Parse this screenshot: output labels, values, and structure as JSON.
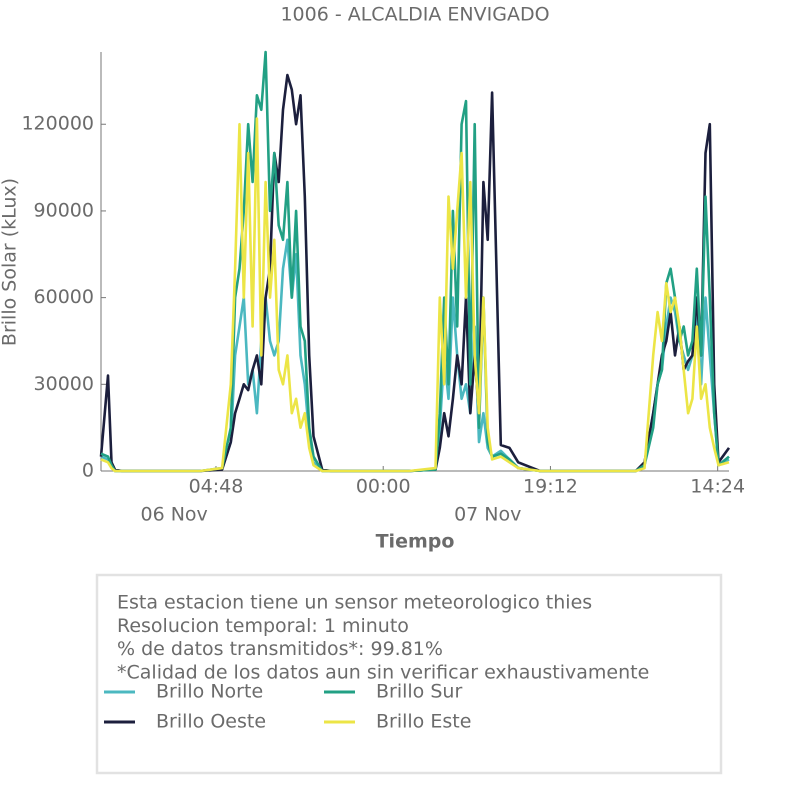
{
  "chart_data": {
    "type": "line",
    "title": "1006 - ALCALDIA ENVIGADO",
    "xlabel": "Tiempo",
    "ylabel": "Brillo Solar (kLux)",
    "x": [
      -8.4,
      -7.6,
      -7.2,
      -6.8,
      -6,
      -3,
      0,
      3,
      5.5,
      6.5,
      7,
      7.5,
      8,
      8.5,
      9,
      9.5,
      10,
      10.5,
      11,
      11.5,
      12,
      12.5,
      13,
      13.5,
      14,
      14.5,
      15,
      15.5,
      16,
      17,
      18,
      21,
      27,
      30,
      30.5,
      31,
      31.5,
      32,
      32.5,
      33,
      33.5,
      34,
      34.5,
      35,
      35.5,
      36,
      36.5,
      37.5,
      38.5,
      39.5,
      42,
      48,
      53,
      54,
      55,
      55.5,
      56,
      56.5,
      57,
      57.5,
      58,
      58.5,
      59,
      59.5,
      60,
      60.5,
      61,
      61.5,
      62,
      62.5,
      63.7
    ],
    "xlim": [
      -8.4,
      63.7
    ],
    "xticks": [
      {
        "value": 4.8,
        "label": "04:48"
      },
      {
        "value": 24,
        "label": "00:00"
      },
      {
        "value": 43.2,
        "label": "19:12"
      },
      {
        "value": 62.4,
        "label": "14:24"
      }
    ],
    "date_labels": [
      {
        "value": 0,
        "label": "06 Nov"
      },
      {
        "value": 36,
        "label": "07 Nov"
      }
    ],
    "ylim": [
      0,
      145000
    ],
    "yticks": [
      0,
      30000,
      60000,
      90000,
      120000
    ],
    "series": [
      {
        "name": "Brillo Norte",
        "color": "#4bb8c0",
        "values": [
          5000,
          4000,
          1500,
          0,
          0,
          0,
          0,
          0,
          800,
          10000,
          40000,
          50000,
          60000,
          30000,
          35000,
          20000,
          45000,
          60000,
          45000,
          40000,
          45000,
          70000,
          80000,
          60000,
          75000,
          40000,
          30000,
          12000,
          3000,
          0,
          0,
          0,
          0,
          500,
          15000,
          40000,
          25000,
          60000,
          40000,
          25000,
          30000,
          20000,
          50000,
          10000,
          20000,
          8000,
          5000,
          7000,
          4000,
          1000,
          0,
          0,
          0,
          2000,
          20000,
          30000,
          35000,
          50000,
          60000,
          55000,
          45000,
          40000,
          35000,
          40000,
          55000,
          30000,
          60000,
          40000,
          20000,
          2000,
          4000
        ]
      },
      {
        "name": "Brillo Oeste",
        "color": "#1c1f3d",
        "values": [
          5000,
          33000,
          3000,
          500,
          0,
          0,
          0,
          0,
          500,
          10000,
          20000,
          25000,
          30000,
          28000,
          35000,
          40000,
          30000,
          60000,
          70000,
          110000,
          100000,
          125000,
          137000,
          132000,
          120000,
          130000,
          95000,
          40000,
          12000,
          500,
          0,
          0,
          0,
          500,
          8000,
          20000,
          12000,
          25000,
          40000,
          30000,
          60000,
          20000,
          40000,
          20000,
          100000,
          80000,
          131000,
          9000,
          8000,
          3000,
          0,
          0,
          0,
          3000,
          20000,
          30000,
          40000,
          45000,
          55000,
          40000,
          50000,
          35000,
          38000,
          40000,
          60000,
          40000,
          110000,
          120000,
          30000,
          3000,
          8000
        ]
      },
      {
        "name": "Brillo Sur",
        "color": "#22a084",
        "values": [
          6000,
          5000,
          2000,
          0,
          0,
          0,
          0,
          0,
          1000,
          15000,
          60000,
          70000,
          90000,
          120000,
          100000,
          130000,
          125000,
          145000,
          90000,
          110000,
          85000,
          80000,
          100000,
          60000,
          90000,
          50000,
          45000,
          15000,
          5000,
          0,
          0,
          0,
          0,
          500,
          20000,
          60000,
          30000,
          90000,
          50000,
          120000,
          128000,
          30000,
          120000,
          15000,
          60000,
          10000,
          5000,
          6000,
          4000,
          1000,
          0,
          0,
          0,
          2000,
          15000,
          30000,
          35000,
          65000,
          70000,
          60000,
          45000,
          50000,
          40000,
          45000,
          70000,
          40000,
          95000,
          60000,
          20000,
          2000,
          5000
        ]
      },
      {
        "name": "Brillo Este",
        "color": "#ece546",
        "values": [
          4000,
          3000,
          1000,
          0,
          0,
          0,
          0,
          0,
          1000,
          30000,
          70000,
          120000,
          60000,
          110000,
          50000,
          122000,
          40000,
          100000,
          60000,
          80000,
          35000,
          30000,
          40000,
          20000,
          25000,
          15000,
          20000,
          8000,
          2000,
          0,
          0,
          0,
          0,
          1000,
          60000,
          30000,
          95000,
          70000,
          90000,
          110000,
          60000,
          100000,
          40000,
          20000,
          60000,
          15000,
          4000,
          5000,
          3000,
          1000,
          0,
          0,
          0,
          1000,
          40000,
          55000,
          45000,
          65000,
          55000,
          60000,
          50000,
          35000,
          20000,
          25000,
          50000,
          25000,
          30000,
          15000,
          8000,
          2000,
          3000
        ]
      }
    ],
    "notes": [
      "Esta estacion tiene un sensor meteorologico thies",
      "Resolucion temporal: 1 minuto",
      "% de datos transmitidos*: 99.81%",
      "*Calidad de los datos aun sin verificar exhaustivamente"
    ]
  }
}
